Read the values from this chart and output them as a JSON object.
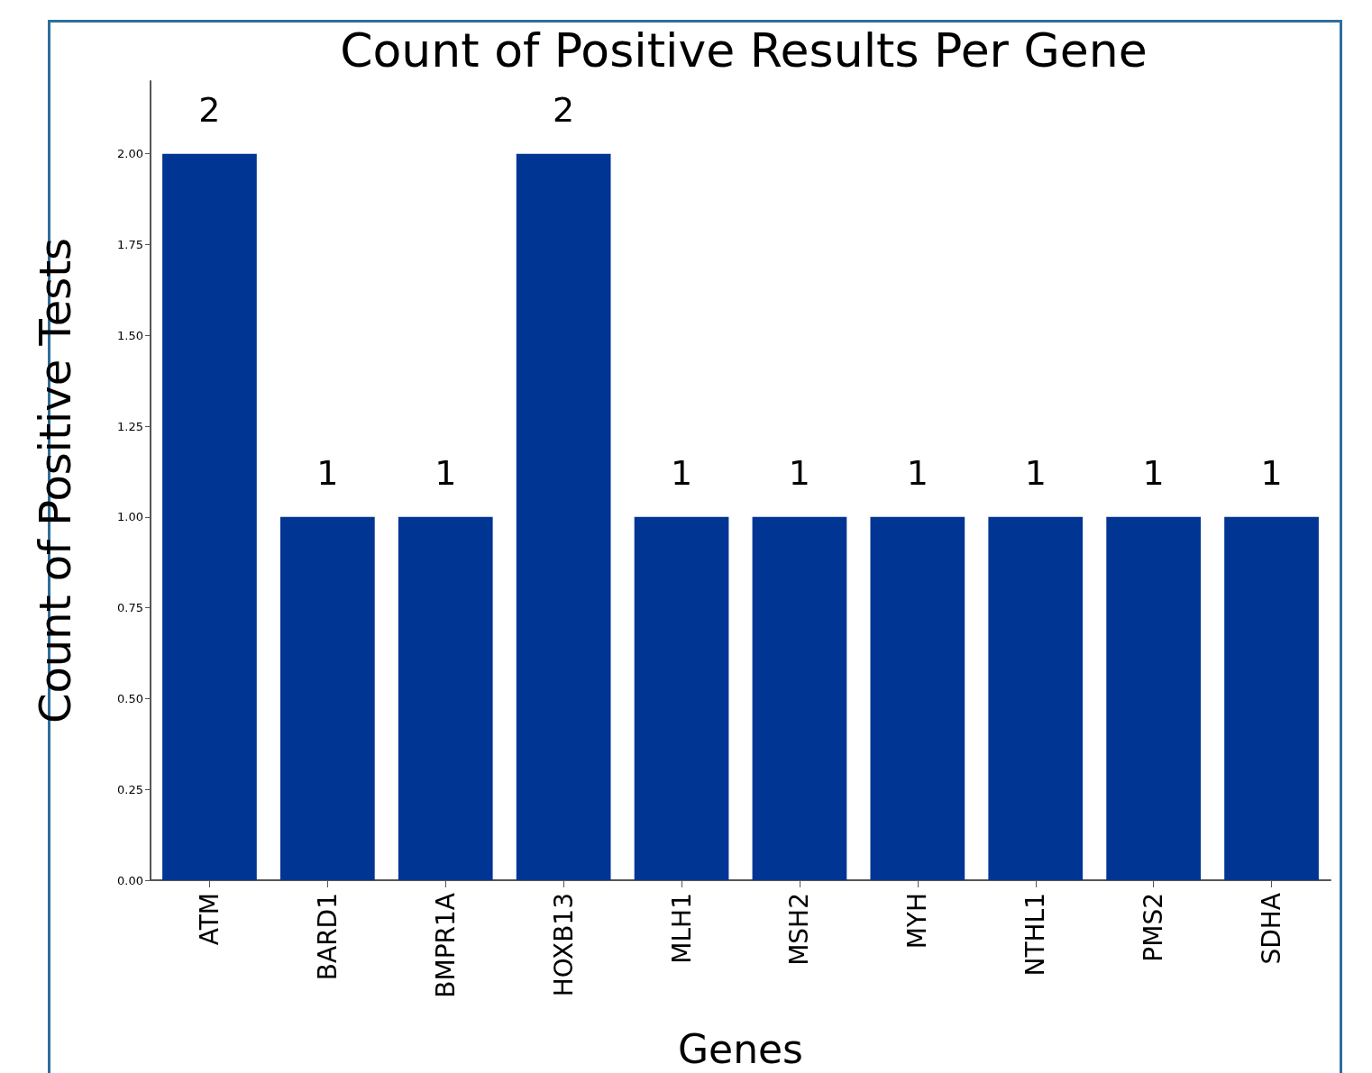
{
  "chart_data": {
    "type": "bar",
    "title": "Count of Positive Results Per Gene",
    "xlabel": "Genes",
    "ylabel": "Count of Positive Tests",
    "categories": [
      "ATM",
      "BARD1",
      "BMPR1A",
      "HOXB13",
      "MLH1",
      "MSH2",
      "MYH",
      "NTHL1",
      "PMS2",
      "SDHA"
    ],
    "values": [
      2,
      1,
      1,
      2,
      1,
      1,
      1,
      1,
      1,
      1
    ],
    "color": "#003594",
    "ylim": [
      0,
      2.2
    ],
    "yticks": [
      {
        "value": 0,
        "label": "0.00"
      },
      {
        "value": 0.25,
        "label": "0.25"
      },
      {
        "value": 0.5,
        "label": "0.50"
      },
      {
        "value": 0.75,
        "label": "0.75"
      },
      {
        "value": 1,
        "label": "1.00"
      },
      {
        "value": 1.25,
        "label": "1.25"
      },
      {
        "value": 1.5,
        "label": "1.50"
      },
      {
        "value": 1.75,
        "label": "1.75"
      },
      {
        "value": 2,
        "label": "2.00"
      }
    ],
    "data_labels": true
  }
}
